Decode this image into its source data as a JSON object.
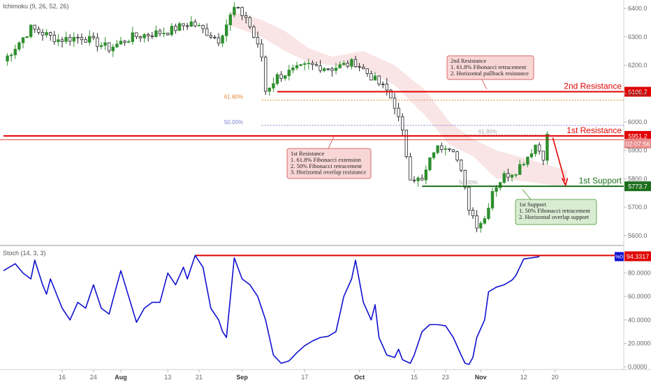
{
  "chart_data": [
    {
      "type": "candlestick",
      "indicator_label": "Ichimoku (9, 26, 52, 26)",
      "y_axis": {
        "ylim": [
          5580,
          6420
        ],
        "ticks": [
          5600,
          5700,
          5800,
          5900,
          6000,
          6100,
          6200,
          6300,
          6400
        ],
        "tick_labels": [
          "5600.0",
          "5700.0",
          "5800.0",
          "5900.0",
          "6000.0",
          "6100.0",
          "6200.0",
          "6300.0",
          "6400.0"
        ]
      },
      "x_axis": {
        "day_range": [
          0,
          124
        ],
        "ticks": [
          {
            "day": 15,
            "label": "16"
          },
          {
            "day": 23,
            "label": "24"
          },
          {
            "day": 30,
            "label": "Aug"
          },
          {
            "day": 42,
            "label": "13"
          },
          {
            "day": 50,
            "label": "21"
          },
          {
            "day": 61,
            "label": "Sep"
          },
          {
            "day": 77,
            "label": "17"
          },
          {
            "day": 91,
            "label": "Oct"
          },
          {
            "day": 105,
            "label": "15"
          },
          {
            "day": 113,
            "label": "23"
          },
          {
            "day": 122,
            "label": "Nov"
          },
          {
            "day": 133,
            "label": "12"
          },
          {
            "day": 141,
            "label": "20"
          }
        ]
      },
      "candles_summary": [
        {
          "day": 0,
          "close": 6215
        },
        {
          "day": 7,
          "close": 6330
        },
        {
          "day": 14,
          "close": 6290
        },
        {
          "day": 20,
          "close": 6300
        },
        {
          "day": 27,
          "close": 6260
        },
        {
          "day": 33,
          "close": 6300
        },
        {
          "day": 42,
          "close": 6320
        },
        {
          "day": 48,
          "close": 6350
        },
        {
          "day": 55,
          "close": 6290
        },
        {
          "day": 59,
          "close": 6400
        },
        {
          "day": 62,
          "close": 6370
        },
        {
          "day": 66,
          "close": 6230
        },
        {
          "day": 67,
          "close": 6110
        },
        {
          "day": 70,
          "close": 6160
        },
        {
          "day": 78,
          "close": 6200
        },
        {
          "day": 84,
          "close": 6190
        },
        {
          "day": 90,
          "close": 6210
        },
        {
          "day": 94,
          "close": 6160
        },
        {
          "day": 98,
          "close": 6110
        },
        {
          "day": 100,
          "close": 6060
        },
        {
          "day": 102,
          "close": 5960
        },
        {
          "day": 104,
          "close": 5810
        },
        {
          "day": 107,
          "close": 5790
        },
        {
          "day": 110,
          "close": 5900
        },
        {
          "day": 113,
          "close": 5920
        },
        {
          "day": 115,
          "close": 5910
        },
        {
          "day": 117,
          "close": 5820
        },
        {
          "day": 119,
          "close": 5700
        },
        {
          "day": 121,
          "close": 5640
        },
        {
          "day": 123,
          "close": 5660
        },
        {
          "day": 125,
          "close": 5760
        },
        {
          "day": 128,
          "close": 5810
        },
        {
          "day": 131,
          "close": 5830
        },
        {
          "day": 134,
          "close": 5880
        },
        {
          "day": 136,
          "close": 5920
        },
        {
          "day": 138,
          "close": 5880
        },
        {
          "day": 139,
          "close": 5950
        }
      ],
      "horizontal_levels": [
        {
          "name": "2nd Resistance",
          "value": 6106.7,
          "price_label": "6106.7",
          "color": "#e00000"
        },
        {
          "name": "1st Resistance",
          "value": 5951.2,
          "price_label": "5951.2",
          "color": "#e00000"
        },
        {
          "name": "1st Support",
          "value": 5773.7,
          "price_label": "5773.7",
          "color": "#1d6e1d"
        }
      ],
      "fib_lines": [
        {
          "label": "61.80%",
          "value": 6077,
          "color": "#e08a3c"
        },
        {
          "label": "50.00%",
          "value": 5988,
          "color": "#7f7fcf"
        },
        {
          "label": "61.80%",
          "value": 5955,
          "color": "#aaaaaa"
        },
        {
          "label": "50.00%",
          "value": 5775,
          "color": "#aaaaaa"
        }
      ],
      "countdown_label": "02:07:56",
      "annotations": [
        {
          "id": "res2",
          "title": "2nd Resistance",
          "lines": [
            "1. 61.8% Fibonacci retracement",
            "2. Horizontal pullback resistance"
          ]
        },
        {
          "id": "res1",
          "title": "1st Resistance",
          "lines": [
            "1. 61.8% Fibonacci extension",
            "2. 50% Fibonacci retracement",
            "3. Horizontal overlap resistance"
          ]
        },
        {
          "id": "sup1",
          "title": "1st Support",
          "lines": [
            "1. 50% Fibonacci retracement",
            "2. Horizontal overlap support"
          ]
        }
      ],
      "colors": {
        "bull": "#2f8f2f",
        "bear": "#222222",
        "resistance": "#e00000",
        "support": "#1d6e1d",
        "arrow": "#e00000",
        "cloud": "#f4cfcf"
      }
    },
    {
      "type": "line",
      "indicator_label": "Stoch (14, 3, 3)",
      "series_name": "%D",
      "y_axis": {
        "ylim": [
          0,
          100
        ],
        "ticks": [
          0,
          20,
          40,
          60,
          80
        ],
        "tick_labels": [
          "0.0000",
          "20.0000",
          "40.0000",
          "60.0000",
          "80.0000"
        ]
      },
      "current_value": 94.3317,
      "current_label": "94.3317",
      "reference_level": {
        "value": 95,
        "color": "#e00000"
      },
      "values": [
        {
          "day": 0,
          "v": 82
        },
        {
          "day": 3,
          "v": 88
        },
        {
          "day": 5,
          "v": 80
        },
        {
          "day": 7,
          "v": 75
        },
        {
          "day": 8,
          "v": 91
        },
        {
          "day": 10,
          "v": 70
        },
        {
          "day": 11,
          "v": 62
        },
        {
          "day": 12,
          "v": 75
        },
        {
          "day": 15,
          "v": 50
        },
        {
          "day": 17,
          "v": 40
        },
        {
          "day": 19,
          "v": 55
        },
        {
          "day": 21,
          "v": 50
        },
        {
          "day": 23,
          "v": 70
        },
        {
          "day": 25,
          "v": 50
        },
        {
          "day": 27,
          "v": 45
        },
        {
          "day": 29,
          "v": 70
        },
        {
          "day": 30,
          "v": 82
        },
        {
          "day": 32,
          "v": 60
        },
        {
          "day": 34,
          "v": 38
        },
        {
          "day": 36,
          "v": 50
        },
        {
          "day": 38,
          "v": 55
        },
        {
          "day": 40,
          "v": 55
        },
        {
          "day": 42,
          "v": 80
        },
        {
          "day": 44,
          "v": 70
        },
        {
          "day": 46,
          "v": 85
        },
        {
          "day": 47,
          "v": 75
        },
        {
          "day": 49,
          "v": 95
        },
        {
          "day": 51,
          "v": 85
        },
        {
          "day": 53,
          "v": 50
        },
        {
          "day": 55,
          "v": 40
        },
        {
          "day": 56,
          "v": 30
        },
        {
          "day": 57,
          "v": 25
        },
        {
          "day": 59,
          "v": 93
        },
        {
          "day": 61,
          "v": 75
        },
        {
          "day": 63,
          "v": 70
        },
        {
          "day": 65,
          "v": 60
        },
        {
          "day": 67,
          "v": 40
        },
        {
          "day": 69,
          "v": 10
        },
        {
          "day": 71,
          "v": 3
        },
        {
          "day": 73,
          "v": 5
        },
        {
          "day": 75,
          "v": 12
        },
        {
          "day": 77,
          "v": 18
        },
        {
          "day": 79,
          "v": 22
        },
        {
          "day": 81,
          "v": 25
        },
        {
          "day": 83,
          "v": 26
        },
        {
          "day": 85,
          "v": 30
        },
        {
          "day": 87,
          "v": 60
        },
        {
          "day": 89,
          "v": 75
        },
        {
          "day": 90,
          "v": 91
        },
        {
          "day": 92,
          "v": 55
        },
        {
          "day": 94,
          "v": 40
        },
        {
          "day": 95,
          "v": 53
        },
        {
          "day": 96,
          "v": 25
        },
        {
          "day": 98,
          "v": 10
        },
        {
          "day": 100,
          "v": 8
        },
        {
          "day": 101,
          "v": 15
        },
        {
          "day": 102,
          "v": 6
        },
        {
          "day": 104,
          "v": 3
        },
        {
          "day": 105,
          "v": 10
        },
        {
          "day": 107,
          "v": 30
        },
        {
          "day": 109,
          "v": 36
        },
        {
          "day": 111,
          "v": 36
        },
        {
          "day": 113,
          "v": 35
        },
        {
          "day": 115,
          "v": 25
        },
        {
          "day": 117,
          "v": 10
        },
        {
          "day": 118,
          "v": 3
        },
        {
          "day": 119,
          "v": 2
        },
        {
          "day": 120,
          "v": 8
        },
        {
          "day": 121,
          "v": 25
        },
        {
          "day": 123,
          "v": 40
        },
        {
          "day": 124,
          "v": 64
        },
        {
          "day": 126,
          "v": 68
        },
        {
          "day": 128,
          "v": 70
        },
        {
          "day": 130,
          "v": 74
        },
        {
          "day": 131,
          "v": 78
        },
        {
          "day": 133,
          "v": 92
        },
        {
          "day": 135,
          "v": 93
        },
        {
          "day": 137,
          "v": 94
        }
      ],
      "color": "#1010d0"
    }
  ]
}
